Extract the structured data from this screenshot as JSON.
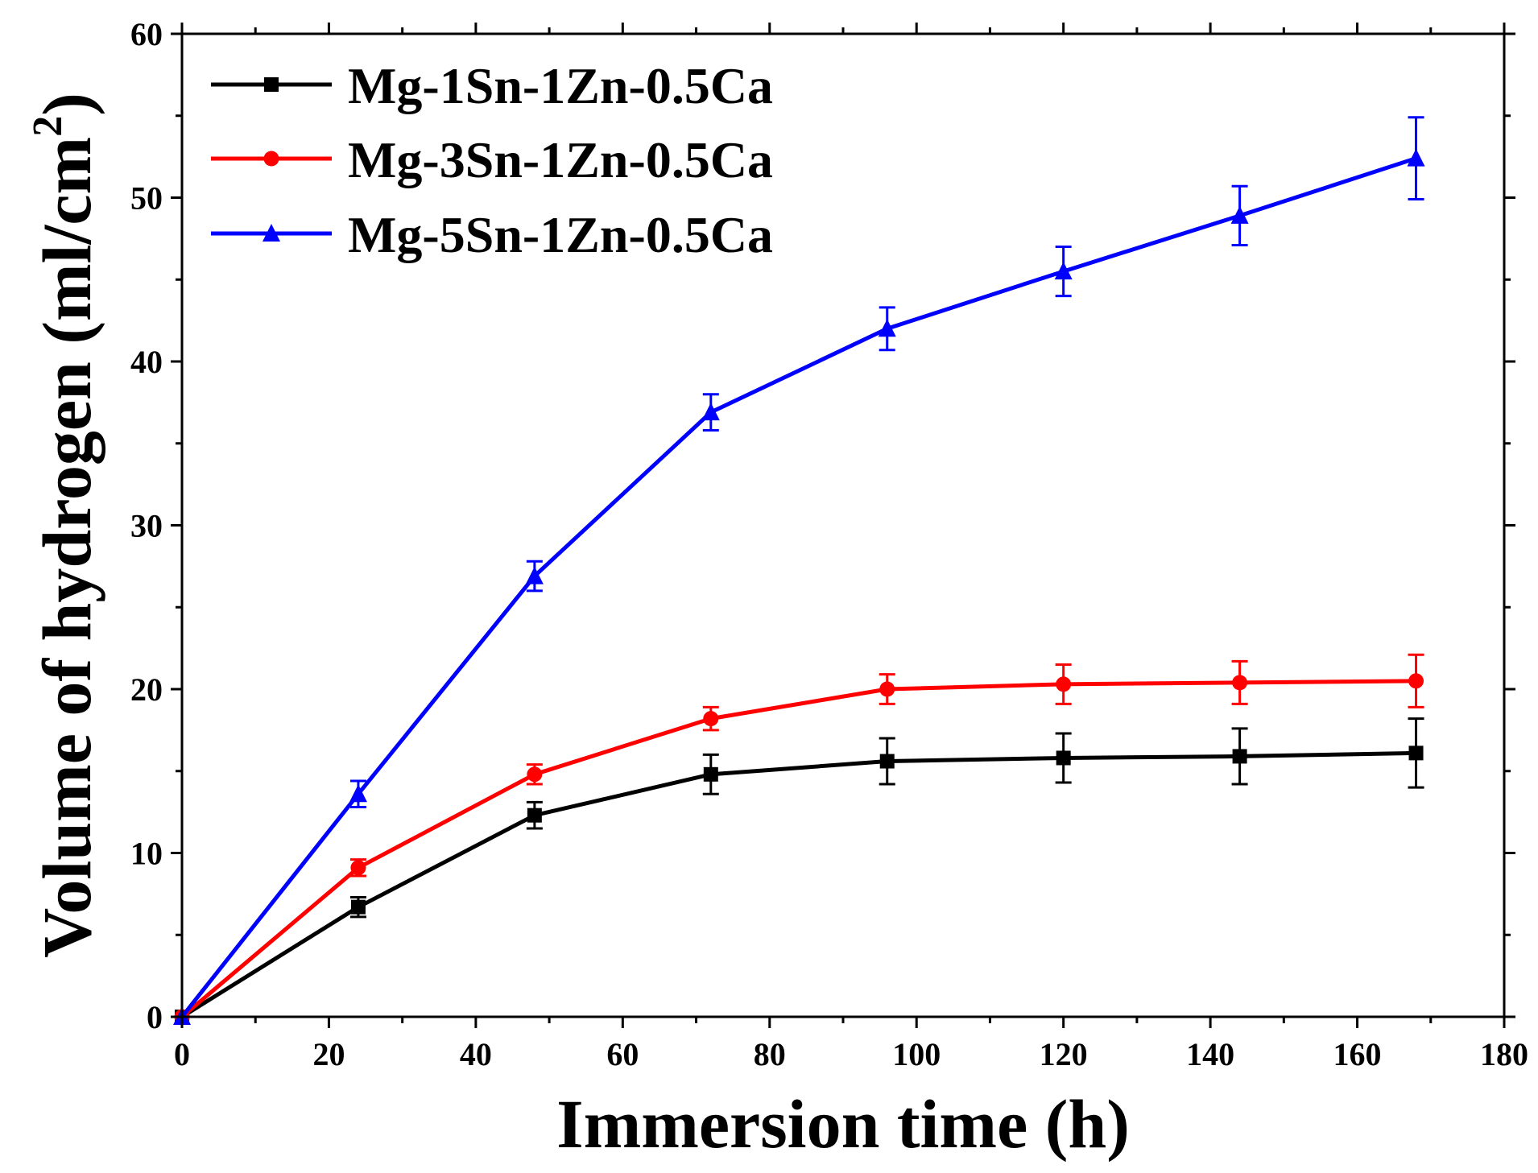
{
  "chart_data": {
    "type": "line",
    "title": "",
    "xlabel": "Immersion time (h)",
    "ylabel": "Volume of hydrogen (ml/cm",
    "ylabel_superscript": "2",
    "ylabel_close": ")",
    "xlim": [
      0,
      180
    ],
    "ylim": [
      0,
      60
    ],
    "xticks": [
      0,
      20,
      40,
      60,
      80,
      100,
      120,
      140,
      160,
      180
    ],
    "yticks": [
      0,
      10,
      20,
      30,
      40,
      50,
      60
    ],
    "xtick_labels": [
      "0",
      "20",
      "40",
      "60",
      "80",
      "100",
      "120",
      "140",
      "160",
      "180"
    ],
    "ytick_labels": [
      "0",
      "10",
      "20",
      "30",
      "40",
      "50",
      "60"
    ],
    "x_minor_step": 10,
    "y_minor_step": 5,
    "grid": false,
    "legend_position": "top-left",
    "x": [
      0,
      24,
      48,
      72,
      96,
      120,
      144,
      168
    ],
    "series": [
      {
        "name": "Mg-1Sn-1Zn-0.5Ca",
        "color": "#000000",
        "marker": "square",
        "values": [
          0,
          6.7,
          12.3,
          14.8,
          15.6,
          15.8,
          15.9,
          16.1
        ],
        "errors": [
          0,
          0.6,
          0.8,
          1.2,
          1.4,
          1.5,
          1.7,
          2.1
        ]
      },
      {
        "name": "Mg-3Sn-1Zn-0.5Ca",
        "color": "#ff0000",
        "marker": "circle",
        "values": [
          0,
          9.1,
          14.8,
          18.2,
          20.0,
          20.3,
          20.4,
          20.5
        ],
        "errors": [
          0,
          0.5,
          0.6,
          0.7,
          0.9,
          1.2,
          1.3,
          1.6
        ]
      },
      {
        "name": "Mg-5Sn-1Zn-0.5Ca",
        "color": "#0000ff",
        "marker": "triangle",
        "values": [
          0,
          13.6,
          26.9,
          36.9,
          42.0,
          45.5,
          48.9,
          52.4
        ],
        "errors": [
          0,
          0.8,
          0.9,
          1.1,
          1.3,
          1.5,
          1.8,
          2.5
        ]
      }
    ]
  }
}
